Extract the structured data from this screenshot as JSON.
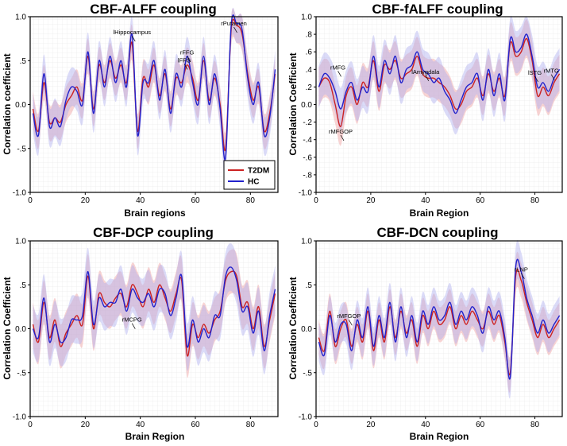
{
  "chart_data": [
    {
      "type": "line",
      "title": "CBF-ALFF coupling",
      "xlabel": "Brain regions",
      "ylabel": "Correlation coefficient",
      "xlim": [
        0,
        90
      ],
      "ylim": [
        -1.0,
        1.0
      ],
      "xticks": [
        0,
        20,
        40,
        60,
        80
      ],
      "xtick_labels": [
        "0",
        "20",
        "40",
        "60",
        "80"
      ],
      "yticks": [
        -1.0,
        -0.5,
        0.0,
        0.5,
        1.0
      ],
      "ytick_labels": [
        "-1.0",
        "-.5",
        "0.0",
        ".5",
        "1.0"
      ],
      "grid": true,
      "legend": {
        "position": "bottom-right",
        "entries": [
          {
            "name": "T2DM",
            "color": "#cc2222"
          },
          {
            "name": "HC",
            "color": "#2222cc"
          }
        ]
      },
      "x": [
        1,
        3,
        5,
        7,
        9,
        11,
        13,
        15,
        17,
        19,
        21,
        23,
        25,
        27,
        29,
        31,
        33,
        35,
        37,
        39,
        41,
        43,
        45,
        47,
        49,
        51,
        53,
        55,
        57,
        59,
        61,
        63,
        65,
        67,
        69,
        71,
        73,
        75,
        77,
        79,
        81,
        83,
        85,
        87,
        89
      ],
      "series": [
        {
          "name": "T2DM",
          "color": "#cc2222",
          "band_color": "#f0a0a0",
          "band": 0.2,
          "values": [
            -0.05,
            -0.3,
            0.25,
            -0.2,
            -0.15,
            -0.2,
            0.0,
            0.1,
            0.2,
            0.05,
            0.55,
            -0.05,
            0.45,
            0.25,
            0.5,
            0.3,
            0.45,
            0.25,
            0.7,
            -0.3,
            0.3,
            0.2,
            0.45,
            0.1,
            0.35,
            -0.05,
            0.3,
            0.25,
            0.45,
            0.3,
            0.05,
            0.5,
            0.05,
            0.3,
            0.0,
            -0.5,
            0.85,
            0.9,
            0.8,
            0.35,
            0.05,
            0.2,
            -0.3,
            -0.1,
            0.35
          ]
        },
        {
          "name": "HC",
          "color": "#2222cc",
          "band_color": "#b0b0f0",
          "band": 0.22,
          "values": [
            -0.1,
            -0.35,
            0.35,
            -0.25,
            -0.15,
            -0.25,
            0.05,
            0.2,
            0.15,
            0.0,
            0.6,
            -0.1,
            0.5,
            0.2,
            0.55,
            0.25,
            0.5,
            0.2,
            0.8,
            -0.35,
            0.25,
            0.25,
            0.5,
            0.05,
            0.4,
            -0.1,
            0.35,
            0.2,
            0.55,
            0.25,
            0.0,
            0.55,
            0.0,
            0.35,
            -0.05,
            -0.6,
            0.9,
            0.92,
            0.85,
            0.3,
            0.0,
            0.25,
            -0.35,
            -0.15,
            0.4
          ]
        }
      ],
      "annotations": [
        {
          "text": "lHippocampus",
          "x": 37,
          "y": 0.8
        },
        {
          "text": "rPutamen",
          "x": 74,
          "y": 0.9
        },
        {
          "text": "rFFG",
          "x": 57,
          "y": 0.57
        },
        {
          "text": "lFFG",
          "x": 56,
          "y": 0.48
        }
      ]
    },
    {
      "type": "line",
      "title": "CBF-fALFF coupling",
      "xlabel": "Brain Region",
      "ylabel": "Correlation Coefficient",
      "xlim": [
        0,
        90
      ],
      "ylim": [
        -1.0,
        1.0
      ],
      "xticks": [
        0,
        20,
        40,
        60,
        80
      ],
      "xtick_labels": [
        "0",
        "20",
        "40",
        "60",
        "80"
      ],
      "yticks": [
        -1.0,
        -0.8,
        -0.6,
        -0.4,
        -0.2,
        0.0,
        0.2,
        0.4,
        0.6,
        0.8,
        1.0
      ],
      "ytick_labels": [
        "-1.0",
        "-.8",
        "-.6",
        "-.4",
        "-.2",
        "0.0",
        ".2",
        ".4",
        ".6",
        ".8",
        "1.0"
      ],
      "grid": true,
      "legend": null,
      "x": [
        1,
        3,
        5,
        7,
        9,
        11,
        13,
        15,
        17,
        19,
        21,
        23,
        25,
        27,
        29,
        31,
        33,
        35,
        37,
        39,
        41,
        43,
        45,
        47,
        49,
        51,
        53,
        55,
        57,
        59,
        61,
        63,
        65,
        67,
        69,
        71,
        73,
        75,
        77,
        79,
        81,
        83,
        85,
        87,
        89
      ],
      "series": [
        {
          "name": "T2DM",
          "color": "#cc2222",
          "band_color": "#f0a0a0",
          "band": 0.22,
          "values": [
            0.2,
            0.3,
            0.25,
            0.0,
            -0.25,
            0.1,
            0.2,
            0.0,
            0.25,
            0.2,
            0.5,
            0.15,
            0.45,
            0.4,
            0.5,
            0.3,
            0.35,
            0.4,
            0.55,
            0.35,
            0.3,
            0.3,
            0.25,
            0.2,
            0.1,
            -0.05,
            0.0,
            0.15,
            0.2,
            0.3,
            0.1,
            0.35,
            0.15,
            0.3,
            0.1,
            0.7,
            0.55,
            0.6,
            0.75,
            0.5,
            0.1,
            0.2,
            0.1,
            0.25,
            0.35
          ]
        },
        {
          "name": "HC",
          "color": "#2222cc",
          "band_color": "#b0b0f0",
          "band": 0.24,
          "values": [
            0.2,
            0.35,
            0.3,
            0.15,
            -0.05,
            0.15,
            0.25,
            0.05,
            0.2,
            0.15,
            0.55,
            0.2,
            0.5,
            0.35,
            0.55,
            0.25,
            0.4,
            0.45,
            0.6,
            0.4,
            0.35,
            0.25,
            0.3,
            0.15,
            0.05,
            -0.1,
            0.05,
            0.2,
            0.25,
            0.35,
            0.05,
            0.4,
            0.1,
            0.35,
            0.05,
            0.75,
            0.6,
            0.65,
            0.8,
            0.55,
            0.2,
            0.25,
            0.15,
            0.3,
            0.4
          ]
        }
      ],
      "annotations": [
        {
          "text": "rMFG",
          "x": 8,
          "y": 0.4
        },
        {
          "text": "rMFGOP",
          "x": 9,
          "y": -0.33
        },
        {
          "text": "lAmygdala",
          "x": 40,
          "y": 0.35
        },
        {
          "text": "lSTG",
          "x": 80,
          "y": 0.34
        },
        {
          "text": "rMTG",
          "x": 86,
          "y": 0.36
        }
      ]
    },
    {
      "type": "line",
      "title": "CBF-DCP coupling",
      "xlabel": "Brain Region",
      "ylabel": "Correlation Coefficient",
      "xlim": [
        0,
        90
      ],
      "ylim": [
        -1.0,
        1.0
      ],
      "xticks": [
        0,
        20,
        40,
        60,
        80
      ],
      "xtick_labels": [
        "0",
        "20",
        "40",
        "60",
        "80"
      ],
      "yticks": [
        -1.0,
        -0.5,
        0.0,
        0.5,
        1.0
      ],
      "ytick_labels": [
        "-1.0",
        "-.5",
        "0.0",
        ".5",
        "1.0"
      ],
      "grid": true,
      "legend": null,
      "x": [
        1,
        3,
        5,
        7,
        9,
        11,
        13,
        15,
        17,
        19,
        21,
        23,
        25,
        27,
        29,
        31,
        33,
        35,
        37,
        39,
        41,
        43,
        45,
        47,
        49,
        51,
        53,
        55,
        57,
        59,
        61,
        63,
        65,
        67,
        69,
        71,
        73,
        75,
        77,
        79,
        81,
        83,
        85,
        87,
        89
      ],
      "series": [
        {
          "name": "T2DM",
          "color": "#cc2222",
          "band_color": "#f0a0a0",
          "band": 0.25,
          "values": [
            0.05,
            -0.15,
            0.3,
            -0.1,
            0.1,
            -0.2,
            -0.05,
            0.05,
            0.15,
            0.05,
            0.6,
            0.0,
            0.4,
            0.3,
            0.25,
            0.35,
            0.4,
            0.25,
            0.5,
            0.4,
            0.25,
            0.45,
            0.3,
            0.5,
            0.35,
            0.2,
            0.4,
            0.55,
            -0.3,
            0.05,
            -0.1,
            0.05,
            -0.05,
            0.1,
            0.2,
            0.55,
            0.65,
            0.6,
            0.25,
            0.3,
            0.0,
            0.25,
            -0.2,
            0.1,
            0.4
          ]
        },
        {
          "name": "HC",
          "color": "#2222cc",
          "band_color": "#b0b0f0",
          "band": 0.27,
          "values": [
            0.0,
            -0.1,
            0.35,
            -0.15,
            0.05,
            -0.15,
            -0.1,
            0.1,
            0.1,
            0.15,
            0.65,
            0.05,
            0.35,
            0.25,
            0.3,
            0.3,
            0.45,
            0.2,
            0.45,
            0.35,
            0.3,
            0.4,
            0.25,
            0.45,
            0.4,
            0.15,
            0.35,
            0.6,
            -0.2,
            0.1,
            -0.15,
            0.0,
            -0.1,
            0.15,
            0.15,
            0.6,
            0.7,
            0.55,
            0.2,
            0.25,
            -0.05,
            0.2,
            -0.25,
            0.15,
            0.45
          ]
        }
      ],
      "annotations": [
        {
          "text": "rMCPG",
          "x": 37,
          "y": 0.08
        }
      ]
    },
    {
      "type": "line",
      "title": "CBF-DCN coupling",
      "xlabel": "Brain Region",
      "ylabel": "Correlation Coefficient",
      "xlim": [
        0,
        90
      ],
      "ylim": [
        -1.0,
        1.0
      ],
      "xticks": [
        0,
        20,
        40,
        60,
        80
      ],
      "xtick_labels": [
        "0",
        "20",
        "40",
        "60",
        "80"
      ],
      "yticks": [
        -1.0,
        -0.5,
        0.0,
        0.5,
        1.0
      ],
      "ytick_labels": [
        "-1.0",
        "-.5",
        "0.0",
        ".5",
        "1.0"
      ],
      "grid": true,
      "legend": null,
      "x": [
        1,
        3,
        5,
        7,
        9,
        11,
        13,
        15,
        17,
        19,
        21,
        23,
        25,
        27,
        29,
        31,
        33,
        35,
        37,
        39,
        41,
        43,
        45,
        47,
        49,
        51,
        53,
        55,
        57,
        59,
        61,
        63,
        65,
        67,
        69,
        71,
        73,
        75,
        77,
        79,
        81,
        83,
        85,
        87,
        89
      ],
      "series": [
        {
          "name": "T2DM",
          "color": "#cc2222",
          "band_color": "#f0a0a0",
          "band": 0.2,
          "values": [
            -0.1,
            -0.25,
            0.2,
            -0.2,
            0.0,
            0.1,
            -0.2,
            0.05,
            -0.15,
            0.2,
            -0.25,
            0.1,
            -0.15,
            0.25,
            -0.1,
            0.2,
            -0.05,
            0.1,
            -0.2,
            0.15,
            0.0,
            0.2,
            0.05,
            0.1,
            0.25,
            0.0,
            0.15,
            0.05,
            0.2,
            0.1,
            0.0,
            0.2,
            0.05,
            0.15,
            -0.15,
            -0.5,
            0.6,
            0.55,
            0.3,
            0.1,
            -0.1,
            0.05,
            -0.1,
            0.0,
            0.1
          ]
        },
        {
          "name": "HC",
          "color": "#2222cc",
          "band_color": "#b0b0f0",
          "band": 0.22,
          "values": [
            -0.15,
            -0.3,
            0.15,
            -0.15,
            0.05,
            0.05,
            -0.25,
            0.1,
            -0.1,
            0.25,
            -0.2,
            0.15,
            -0.1,
            0.3,
            -0.15,
            0.25,
            -0.1,
            0.15,
            -0.15,
            0.2,
            0.05,
            0.25,
            0.1,
            0.15,
            0.3,
            0.05,
            0.2,
            0.1,
            0.25,
            0.15,
            -0.05,
            0.25,
            0.1,
            0.2,
            -0.1,
            -0.55,
            0.7,
            0.65,
            0.35,
            0.15,
            -0.05,
            0.1,
            -0.05,
            0.05,
            0.15
          ]
        }
      ],
      "annotations": [
        {
          "text": "rMFGOP",
          "x": 12,
          "y": 0.12
        },
        {
          "text": "rLNP",
          "x": 75,
          "y": 0.65
        }
      ]
    }
  ]
}
